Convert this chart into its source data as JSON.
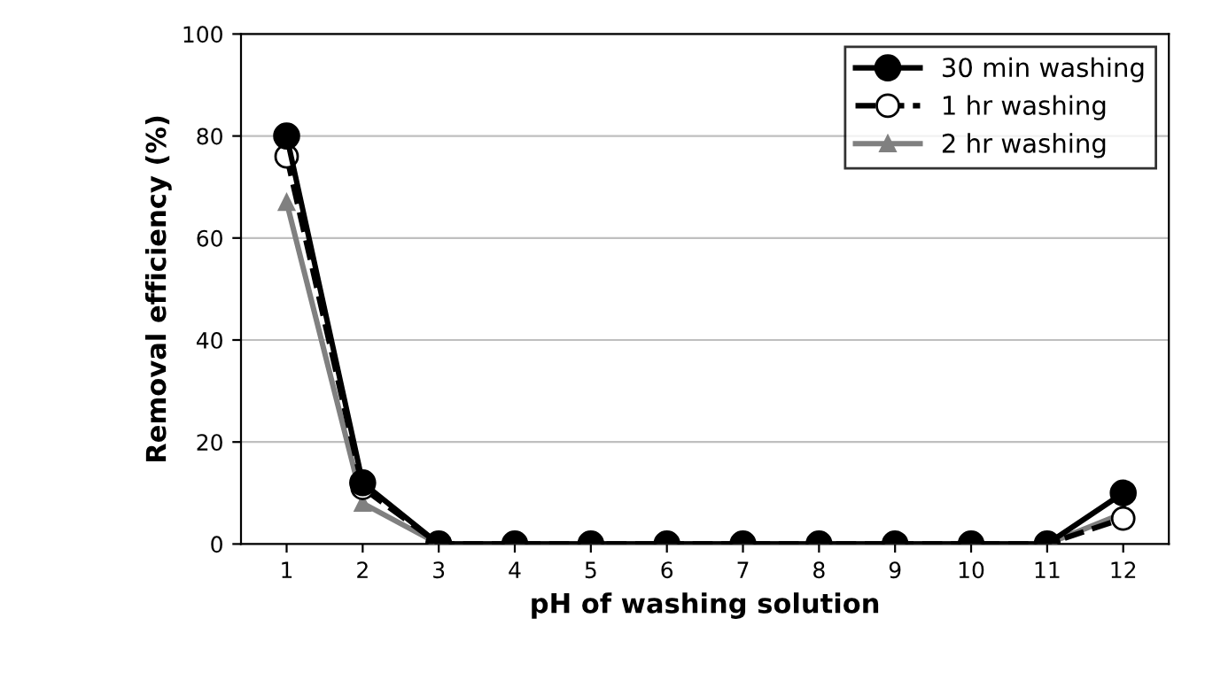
{
  "chart_data": {
    "type": "line",
    "xlabel": "pH of washing solution",
    "ylabel": "Removal efficiency (%)",
    "categories": [
      "1",
      "2",
      "3",
      "4",
      "5",
      "6",
      "7",
      "8",
      "9",
      "10",
      "11",
      "12"
    ],
    "series": [
      {
        "name": "30 min washing",
        "color": "#000000",
        "marker": "circle",
        "line_style": "solid",
        "values": [
          80,
          12,
          0,
          0,
          0,
          0,
          0,
          0,
          0,
          0,
          0,
          10
        ]
      },
      {
        "name": "1 hr washing",
        "color": "#000000",
        "marker": "circle",
        "line_style": "dashed",
        "values": [
          76,
          11,
          0,
          0,
          0,
          0,
          0,
          0,
          0,
          0,
          0,
          5
        ]
      },
      {
        "name": "2 hr washing",
        "color": "#808080",
        "marker": "triangle",
        "line_style": "solid",
        "values": [
          67,
          8,
          0,
          0,
          0,
          0,
          0,
          0,
          0,
          0,
          0,
          6
        ]
      }
    ],
    "ylim": [
      0,
      100
    ],
    "yticks": [
      0,
      20,
      40,
      60,
      80,
      100
    ],
    "grid": "y",
    "legend": "top right"
  }
}
